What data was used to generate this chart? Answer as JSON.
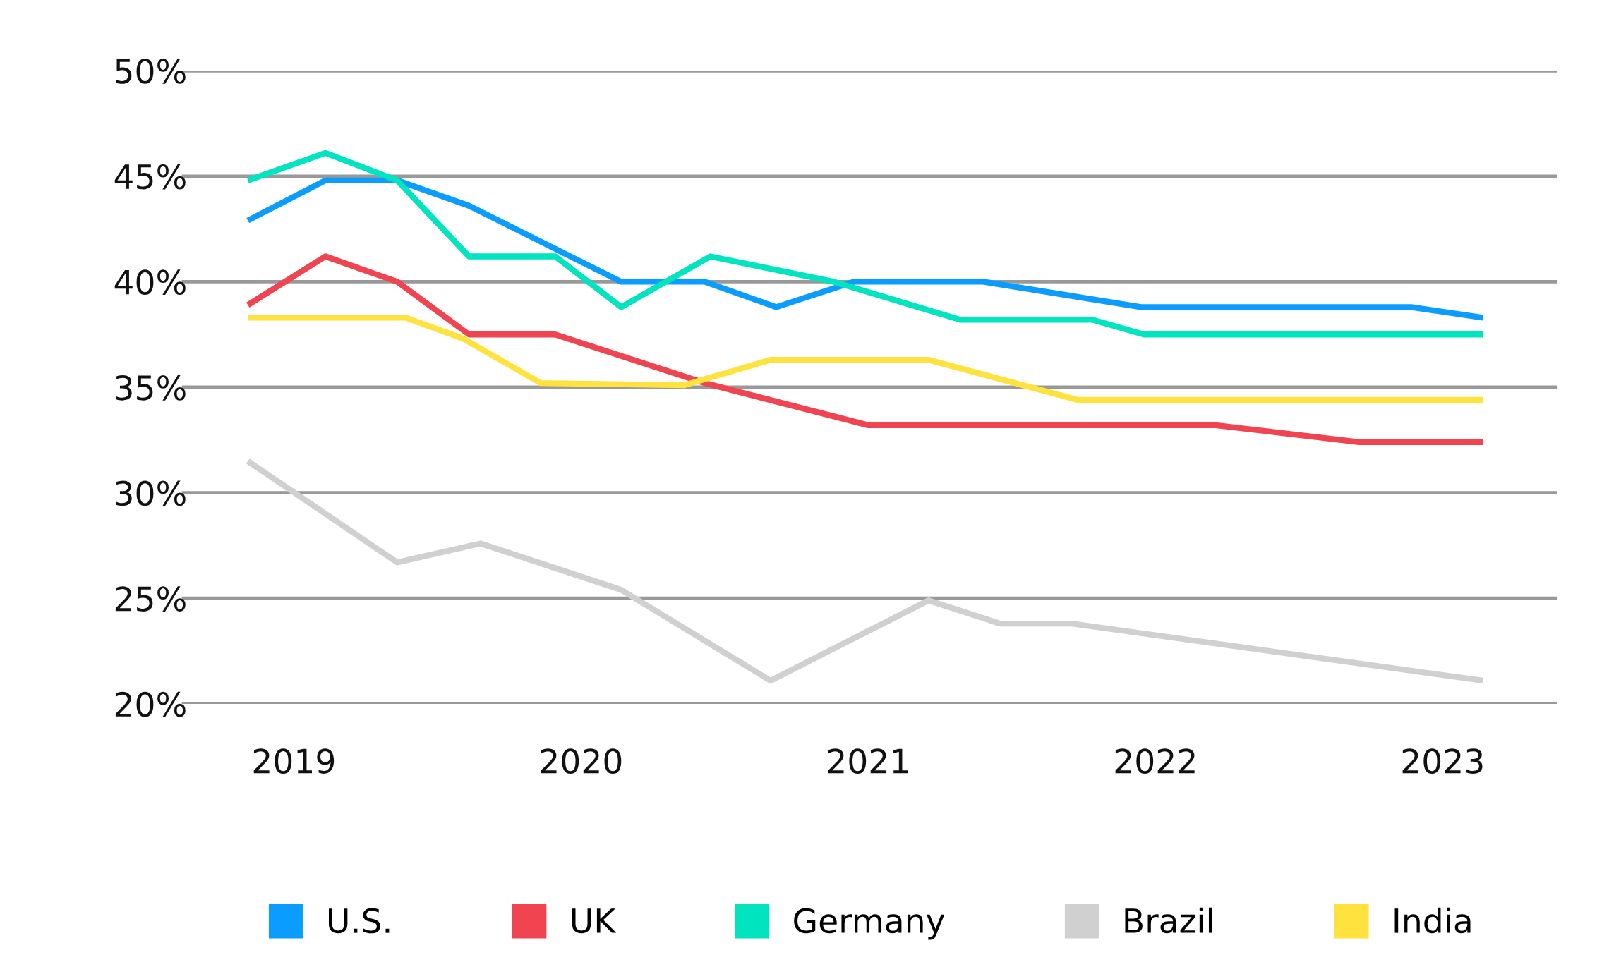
{
  "chart_data": {
    "type": "line",
    "series": [
      {
        "name": "U.S.",
        "color": "#0a9cff",
        "x": [
          2018.84,
          2019.11,
          2019.36,
          2019.61,
          2020.14,
          2020.43,
          2020.68,
          2020.95,
          2021.4,
          2021.95,
          2022.89,
          2023.14
        ],
        "values": [
          42.9,
          44.8,
          44.8,
          43.6,
          40.0,
          40.0,
          38.8,
          40.0,
          40.0,
          38.8,
          38.8,
          38.3
        ]
      },
      {
        "name": "UK",
        "color": "#f04451",
        "x": [
          2018.84,
          2019.11,
          2019.36,
          2019.61,
          2019.91,
          2020.43,
          2021.0,
          2022.21,
          2022.71,
          2023.14
        ],
        "values": [
          38.9,
          41.2,
          40.0,
          37.5,
          37.5,
          35.2,
          33.2,
          33.2,
          32.4,
          32.4
        ]
      },
      {
        "name": "Germany",
        "color": "#00e5c0",
        "x": [
          2018.84,
          2019.11,
          2019.36,
          2019.61,
          2019.91,
          2020.14,
          2020.45,
          2020.88,
          2021.32,
          2021.78,
          2021.96,
          2023.14
        ],
        "values": [
          44.8,
          46.1,
          44.8,
          41.2,
          41.2,
          38.8,
          41.2,
          40.0,
          38.2,
          38.2,
          37.5,
          37.5
        ]
      },
      {
        "name": "Brazil",
        "color": "#d0d0d0",
        "x": [
          2018.84,
          2019.36,
          2019.65,
          2020.14,
          2020.66,
          2021.21,
          2021.46,
          2021.71,
          2023.14
        ],
        "values": [
          31.5,
          26.7,
          27.6,
          25.4,
          21.1,
          24.9,
          23.8,
          23.8,
          21.1
        ]
      },
      {
        "name": "India",
        "color": "#ffe23d",
        "x": [
          2018.84,
          2019.39,
          2019.59,
          2019.86,
          2020.36,
          2020.66,
          2021.21,
          2021.73,
          2023.14
        ],
        "values": [
          38.3,
          38.3,
          37.3,
          35.2,
          35.1,
          36.3,
          36.3,
          34.4,
          34.4
        ]
      }
    ],
    "xlim": [
      2018.61,
      2023.4
    ],
    "xticks": [
      2019,
      2020,
      2021,
      2022,
      2023
    ],
    "ylim": [
      20,
      50
    ],
    "yticks": [
      {
        "value": 20,
        "label": "20%"
      },
      {
        "value": 25,
        "label": "25%"
      },
      {
        "value": 30,
        "label": "30%"
      },
      {
        "value": 35,
        "label": "35%"
      },
      {
        "value": 40,
        "label": "40%"
      },
      {
        "value": 45,
        "label": "45%"
      },
      {
        "value": 50,
        "label": "50%"
      }
    ],
    "grid": "y",
    "legend": "bottom",
    "marker": "none",
    "line_style": "solid"
  }
}
